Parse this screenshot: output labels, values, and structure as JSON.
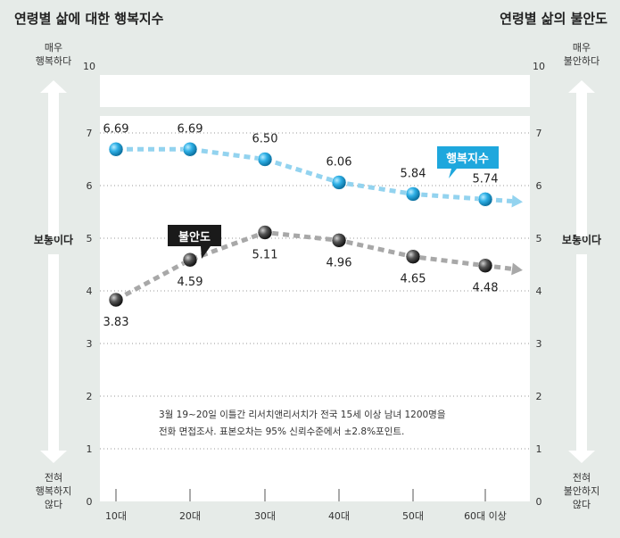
{
  "chart_data": {
    "type": "line",
    "title_left": "연령별 삶에 대한 행복지수",
    "title_right": "연령별 삶의 불안도",
    "categories": [
      "10대",
      "20대",
      "30대",
      "40대",
      "50대",
      "60대 이상"
    ],
    "series": [
      {
        "name": "행복지수",
        "values": [
          6.69,
          6.69,
          6.5,
          6.06,
          5.84,
          5.74
        ],
        "value_labels": [
          "6.69",
          "6.69",
          "6.50",
          "6.06",
          "5.84",
          "5.74"
        ],
        "color": "#2ba3d6"
      },
      {
        "name": "불안도",
        "values": [
          3.83,
          4.59,
          5.11,
          4.96,
          4.65,
          4.48
        ],
        "value_labels": [
          "3.83",
          "4.59",
          "5.11",
          "4.96",
          "4.65",
          "4.48"
        ],
        "color": "#4a4a4a"
      }
    ],
    "ylim": [
      0,
      10
    ],
    "yticks": [
      "0",
      "1",
      "2",
      "3",
      "4",
      "5",
      "6",
      "7",
      "10"
    ],
    "axis_break": [
      7,
      10
    ],
    "grid": true,
    "left_axis_labels": {
      "top": "매우\n행복하다",
      "middle": "보통이다",
      "bottom": "전혀\n행복하지\n않다"
    },
    "right_axis_labels": {
      "top": "매우\n불안하다",
      "middle": "보통이다",
      "bottom": "전혀\n불안하지\n않다"
    },
    "note_line1": "3월 19~20일 이틀간  리서치앤리서치가 전국 15세 이상 남녀 1200명을",
    "note_line2": "전화 면접조사. 표본오차는 95% 신뢰수준에서 ±2.8%포인트."
  }
}
